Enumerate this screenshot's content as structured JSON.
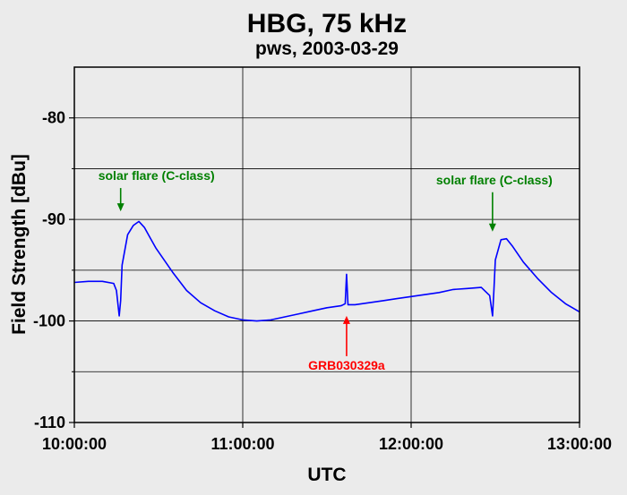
{
  "chart_data": {
    "type": "line",
    "title": "HBG, 75 kHz",
    "subtitle": "pws, 2003-03-29",
    "xlabel": "UTC",
    "ylabel": "Field Strength [dBu]",
    "xlim": [
      "10:00:00",
      "13:00:00"
    ],
    "ylim": [
      -110,
      -75
    ],
    "x_ticks": [
      "10:00:00",
      "11:00:00",
      "12:00:00",
      "13:00:00"
    ],
    "y_ticks": [
      -80,
      -90,
      -100,
      -110
    ],
    "grid": true,
    "colors": {
      "series": "#0000ff",
      "flare_annotation": "#008000",
      "grb_annotation": "#ff0000",
      "plot_background": "#ebebeb"
    },
    "series": [
      {
        "x": [
          "10:00:00",
          "10:05:00",
          "10:10:00",
          "10:14:00",
          "10:15:00",
          "10:16:00",
          "10:16:30",
          "10:17:00",
          "10:19:00",
          "10:21:00",
          "10:23:00",
          "10:25:00",
          "10:27:00",
          "10:29:00",
          "10:35:00",
          "10:40:00",
          "10:45:00",
          "10:50:00",
          "10:55:00",
          "11:00:00",
          "11:05:00",
          "11:10:00",
          "11:15:00",
          "11:20:00",
          "11:25:00",
          "11:30:00",
          "11:35:00",
          "11:36:30",
          "11:37:00",
          "11:37:30",
          "11:40:00",
          "11:45:00",
          "11:50:00",
          "11:55:00",
          "12:00:00",
          "12:05:00",
          "12:10:00",
          "12:15:00",
          "12:20:00",
          "12:25:00",
          "12:28:00",
          "12:29:00",
          "12:29:30",
          "12:30:00",
          "12:32:00",
          "12:34:00",
          "12:36:00",
          "12:40:00",
          "12:45:00",
          "12:50:00",
          "12:55:00",
          "13:00:00"
        ],
        "values": [
          -96.2,
          -96.1,
          -96.1,
          -96.3,
          -97.0,
          -99.5,
          -98.0,
          -94.5,
          -91.5,
          -90.6,
          -90.2,
          -90.8,
          -91.8,
          -92.8,
          -95.2,
          -97.0,
          -98.2,
          -99.0,
          -99.6,
          -99.9,
          -100.0,
          -99.9,
          -99.6,
          -99.3,
          -99.0,
          -98.7,
          -98.5,
          -98.3,
          -95.4,
          -98.4,
          -98.4,
          -98.2,
          -98.0,
          -97.8,
          -97.6,
          -97.4,
          -97.2,
          -96.9,
          -96.8,
          -96.7,
          -97.5,
          -99.5,
          -97.0,
          -94.0,
          -92.0,
          -91.9,
          -92.6,
          -94.2,
          -95.8,
          -97.2,
          -98.3,
          -99.1
        ]
      }
    ],
    "annotations": [
      {
        "text": "solar flare (C-class)",
        "x": "10:16:30",
        "y": -89.2,
        "color": "flare"
      },
      {
        "text": "solar flare (C-class)",
        "x": "12:29:00",
        "y": -91.2,
        "color": "flare"
      },
      {
        "text": "GRB030329a",
        "x": "11:37:00",
        "y": -99.5,
        "color": "grb"
      }
    ]
  }
}
